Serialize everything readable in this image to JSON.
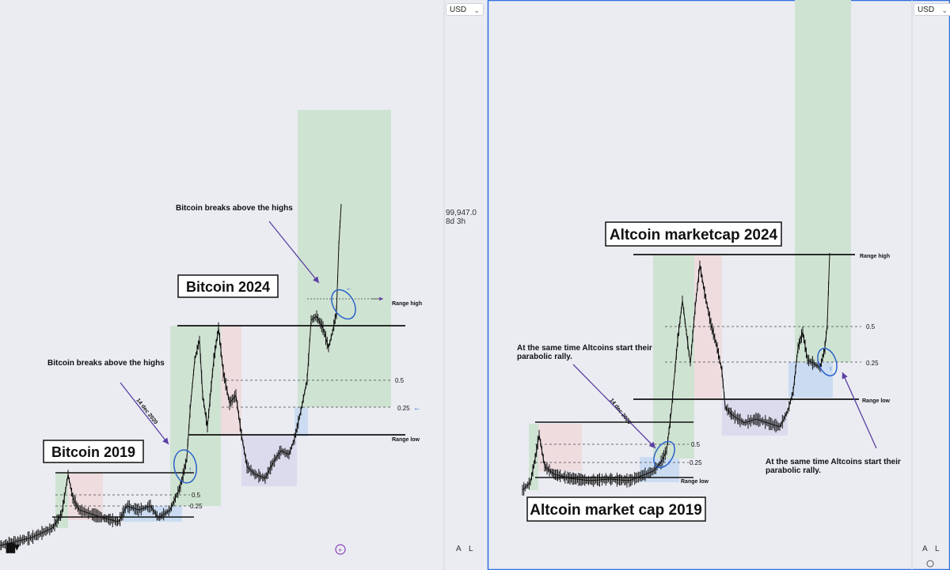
{
  "panels": [
    {
      "currency": "USD",
      "price_label": "99,947.0",
      "countdown_label": "8d 3h",
      "axis_buttons": [
        "A",
        "L"
      ],
      "title_2019": "Bitcoin 2019",
      "title_2024": "Bitcoin 2024",
      "note_1": "Bitcoin breaks above the highs",
      "note_2": "Bitcoin breaks above the highs",
      "date_note": "14 dec 2020",
      "fib_labels": [
        "0.5",
        "0.25",
        "0.5",
        "0.25"
      ],
      "range_high": "Range high",
      "range_low": "Range low"
    },
    {
      "currency": "USD",
      "axis_buttons": [
        "A",
        "L"
      ],
      "title_2024": "Altcoin marketcap 2024",
      "title_2019": "Altcoin market cap 2019",
      "note_1_line1": "At the same time Altcoins start their",
      "note_1_line2": "parabolic rally.",
      "note_2_line1": "At the same time Altcoins start their",
      "note_2_line2": "parabolic rally.",
      "date_note": "14 dec 2020",
      "fib_labels": [
        "0.5",
        "0.25",
        "0.5",
        "0.25"
      ],
      "range_high": "Range high",
      "range_low_1": "Range low",
      "range_low_2": "Range low"
    }
  ],
  "colors": {
    "zone_green": "#cfe3d2",
    "zone_red": "#eedcdf",
    "zone_blue": "#cbdcf2",
    "zone_purple": "#dcdbee",
    "annotation": "#5b3fa3",
    "circle": "#2a62c9"
  },
  "chart_data": [
    {
      "type": "candlestick",
      "title": "Bitcoin",
      "currency": "USD",
      "last_price": 99947.0,
      "annotations": [
        "Bitcoin 2019",
        "Bitcoin 2024",
        "Bitcoin breaks above the highs",
        "Range high",
        "Range low",
        "0.5",
        "0.25",
        "14 dec 2020"
      ]
    },
    {
      "type": "candlestick",
      "title": "Altcoin market cap",
      "currency": "USD",
      "annotations": [
        "Altcoin marketcap 2024",
        "Altcoin market cap 2019",
        "At the same time Altcoins start their parabolic rally.",
        "Range high",
        "Range low",
        "0.5",
        "0.25",
        "14 dec 2020"
      ]
    }
  ]
}
